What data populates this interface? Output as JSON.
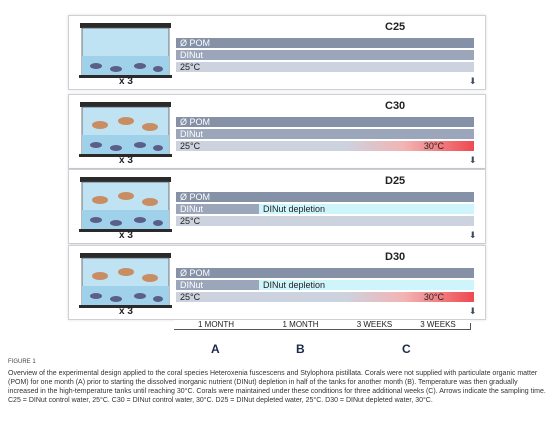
{
  "conditions": [
    {
      "title": "C25",
      "pom": "Ø POM",
      "dinut": "DINut",
      "dinut_depletion": "",
      "temp_start": "25°C",
      "temp_heat": "",
      "replicates": "x 3"
    },
    {
      "title": "C30",
      "pom": "Ø POM",
      "dinut": "DINut",
      "dinut_depletion": "",
      "temp_start": "25°C",
      "temp_heat": "30°C",
      "replicates": "x 3"
    },
    {
      "title": "D25",
      "pom": "Ø POM",
      "dinut": "DINut",
      "dinut_depletion": "DINut depletion",
      "temp_start": "25°C",
      "temp_heat": "",
      "replicates": "x 3"
    },
    {
      "title": "D30",
      "pom": "Ø POM",
      "dinut": "DINut",
      "dinut_depletion": "DINut depletion",
      "temp_start": "25°C",
      "temp_heat": "30°C",
      "replicates": "x 3"
    }
  ],
  "sampling_arrow": "⬇",
  "timeline": {
    "labels": [
      "1 MONTH",
      "1 MONTH",
      "3 WEEKS",
      "3 WEEKS"
    ],
    "phases": [
      "A",
      "B",
      "C"
    ]
  },
  "figure_label": "FIGURE 1",
  "caption": "Overview of the experimental design applied to the coral species Heteroxenia fuscescens and Stylophora pistillata. Corals were not supplied with particulate organic matter (POM) for one month (A) prior to starting the dissolved inorganic nutrient (DINut) depletion in half of the tanks for another month (B). Temperature was then gradually increased in the high-temperature tanks until reaching 30°C. Corals were maintained under these conditions for three additional weeks (C). Arrows indicate the sampling time. C25 = DINut control water, 25°C. C30 = DINut control water, 30°C. D25 = DINut depleted water, 25°C. D30 = DINut depleted water, 30°C.",
  "colors": {
    "pom_bar": "#8591a6",
    "dinut_bar": "#9ba6ba",
    "temp_bar": "#ccd2de",
    "depletion": "#cef4fc",
    "heat": "#ee4a4f"
  }
}
